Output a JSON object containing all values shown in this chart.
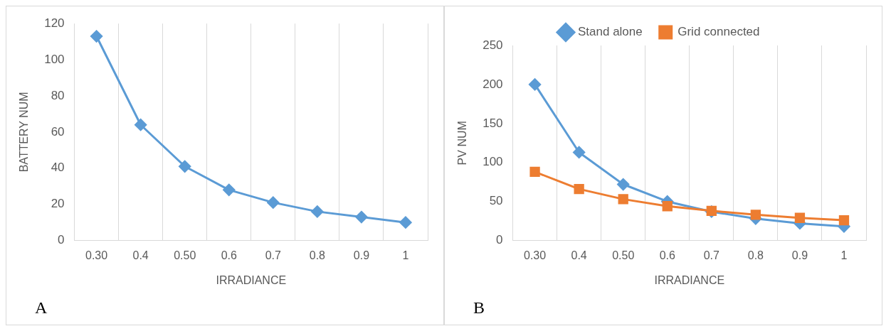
{
  "chart_data": [
    {
      "type": "line",
      "xlabel": "IRRADIANCE",
      "ylabel": "BATTERY NUM",
      "categories": [
        "0.30",
        "0.4",
        "0.50",
        "0.6",
        "0.7",
        "0.8",
        "0.9",
        "1"
      ],
      "series": [
        {
          "color": "#5b9bd5",
          "marker": "diamond",
          "values": [
            113,
            64,
            41,
            28,
            21,
            16,
            13,
            10
          ]
        }
      ],
      "ylim": [
        0,
        120
      ],
      "yticks": [
        0,
        20,
        40,
        60,
        80,
        100,
        120
      ],
      "grid": "x",
      "legend": false,
      "line_style": "solid",
      "annotations": [
        "A"
      ]
    },
    {
      "type": "line",
      "xlabel": "IRRADIANCE",
      "ylabel": "PV NUM",
      "categories": [
        "0.30",
        "0.4",
        "0.50",
        "0.6",
        "0.7",
        "0.8",
        "0.9",
        "1"
      ],
      "series": [
        {
          "name": "Stand alone",
          "color": "#5b9bd5",
          "marker": "diamond",
          "values": [
            200,
            113,
            72,
            50,
            37,
            28,
            22,
            18
          ]
        },
        {
          "name": "Grid connected",
          "color": "#ed7d31",
          "marker": "square",
          "values": [
            88,
            66,
            53,
            44,
            38,
            33,
            29,
            26
          ]
        }
      ],
      "ylim": [
        0,
        250
      ],
      "yticks": [
        0,
        50,
        100,
        150,
        200,
        250
      ],
      "grid": "x",
      "legend": "top",
      "line_style": "solid",
      "annotations": [
        "B"
      ]
    }
  ]
}
